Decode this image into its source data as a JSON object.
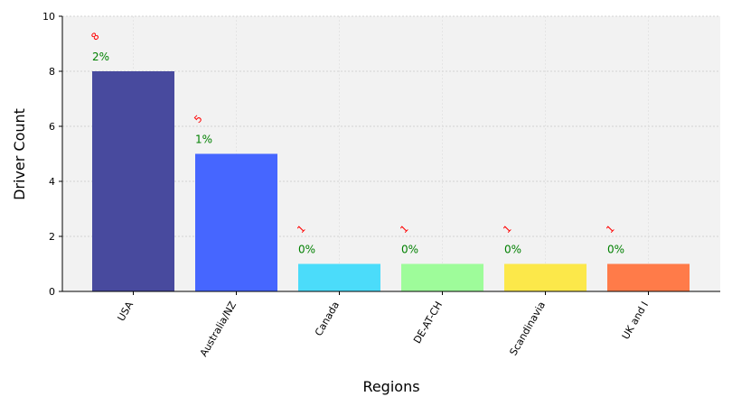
{
  "chart_data": {
    "type": "bar",
    "categories": [
      "USA",
      "Australia/NZ",
      "Canada",
      "DE-AT-CH",
      "Scandinavia",
      "UK and I"
    ],
    "values": [
      8,
      5,
      1,
      1,
      1,
      1
    ],
    "count_labels": [
      "8",
      "5",
      "1",
      "1",
      "1",
      "1"
    ],
    "percent_labels": [
      "2%",
      "1%",
      "0%",
      "0%",
      "0%",
      "0%"
    ],
    "colors": [
      "#484a9e",
      "#4666ff",
      "#4bdcfa",
      "#9efc9a",
      "#fce84a",
      "#ff7b49"
    ],
    "xlabel": "Regions",
    "ylabel": "Driver Count",
    "ylim": [
      0,
      10
    ],
    "yticks": [
      0,
      2,
      4,
      6,
      8,
      10
    ],
    "grid": true,
    "background": "#f2f2f2"
  }
}
